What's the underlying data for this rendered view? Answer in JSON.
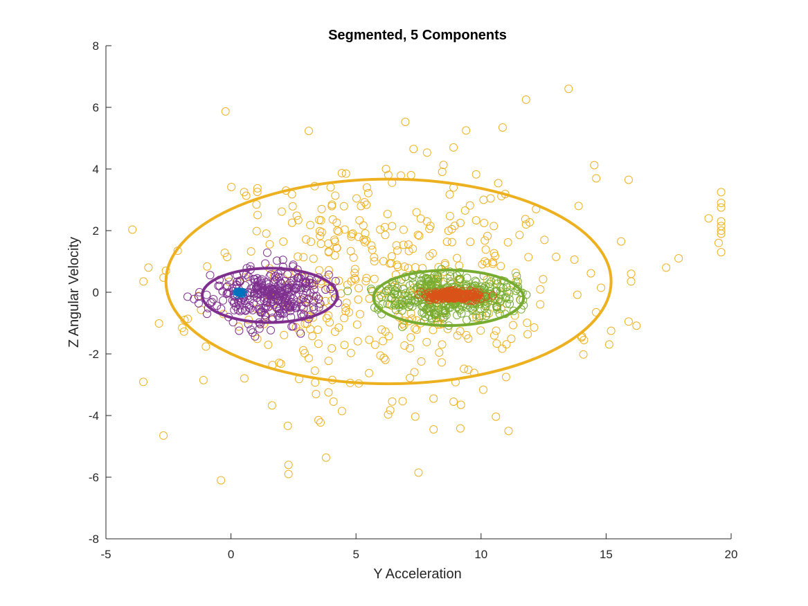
{
  "chart_data": {
    "type": "scatter",
    "title": "Segmented, 5 Components",
    "xlabel": "Y Acceleration",
    "ylabel": "Z Angular Velocity",
    "xlim": [
      -5,
      20
    ],
    "ylim": [
      -8,
      8
    ],
    "xticks": [
      "-5",
      "0",
      "5",
      "10",
      "15",
      "20"
    ],
    "yticks": [
      "-8",
      "-6",
      "-4",
      "-2",
      "0",
      "2",
      "4",
      "6",
      "8"
    ],
    "grid": false,
    "legend": false,
    "colors": {
      "yellow": "#EDB120",
      "purple": "#7E2F8E",
      "green": "#77AC30",
      "orange": "#D95319",
      "blue": "#0072BD"
    },
    "clusters": [
      {
        "color": "#EDB120",
        "center": [
          6.2,
          0.35
        ],
        "spread": [
          3.6,
          1.9
        ],
        "count": 420,
        "seed": 11
      },
      {
        "color": "#7E2F8E",
        "center": [
          1.5,
          -0.1
        ],
        "spread": [
          1.1,
          0.45
        ],
        "count": 320,
        "seed": 23
      },
      {
        "color": "#77AC30",
        "center": [
          8.7,
          -0.1
        ],
        "spread": [
          1.3,
          0.35
        ],
        "count": 380,
        "seed": 37
      },
      {
        "color": "#D95319",
        "center": [
          8.9,
          -0.1
        ],
        "spread": [
          0.6,
          0.07
        ],
        "count": 160,
        "seed": 41
      },
      {
        "color": "#0072BD",
        "center": [
          0.35,
          0.0
        ],
        "spread": [
          0.08,
          0.03
        ],
        "count": 12,
        "seed": 53
      }
    ],
    "outliers": [
      {
        "x": 13.5,
        "y": 6.6
      },
      {
        "x": 11.8,
        "y": 6.25
      },
      {
        "x": 9.4,
        "y": 5.25
      },
      {
        "x": 8.9,
        "y": 4.7
      },
      {
        "x": 7.3,
        "y": 4.65
      },
      {
        "x": 15.9,
        "y": 3.65
      },
      {
        "x": 19.6,
        "y": 3.25
      },
      {
        "x": 19.6,
        "y": 2.9
      },
      {
        "x": 19.6,
        "y": 2.75
      },
      {
        "x": 19.6,
        "y": 2.3
      },
      {
        "x": 19.6,
        "y": 2.15
      },
      {
        "x": 19.6,
        "y": 2.0
      },
      {
        "x": 19.6,
        "y": 1.9
      },
      {
        "x": 19.6,
        "y": 1.3
      },
      {
        "x": 19.5,
        "y": 1.6
      },
      {
        "x": 19.1,
        "y": 2.4
      },
      {
        "x": 17.9,
        "y": 1.1
      },
      {
        "x": 17.4,
        "y": 0.8
      },
      {
        "x": 16.0,
        "y": 0.6
      },
      {
        "x": 16.0,
        "y": 0.35
      },
      {
        "x": 15.6,
        "y": 1.65
      },
      {
        "x": 15.9,
        "y": -0.95
      },
      {
        "x": 15.2,
        "y": -1.25
      },
      {
        "x": 14.6,
        "y": -0.65
      },
      {
        "x": 13.9,
        "y": 2.8
      },
      {
        "x": 12.2,
        "y": 2.7
      },
      {
        "x": 11.8,
        "y": 2.2
      },
      {
        "x": 11.1,
        "y": -4.5
      },
      {
        "x": 11.0,
        "y": -2.75
      },
      {
        "x": 8.1,
        "y": -3.45
      },
      {
        "x": 8.9,
        "y": -3.55
      },
      {
        "x": 8.1,
        "y": -4.45
      },
      {
        "x": 7.5,
        "y": -5.85
      },
      {
        "x": 2.3,
        "y": -5.6
      },
      {
        "x": 2.3,
        "y": -5.9
      },
      {
        "x": -0.4,
        "y": -6.1
      },
      {
        "x": -2.7,
        "y": -4.65
      },
      {
        "x": 3.5,
        "y": -4.15
      },
      {
        "x": 3.4,
        "y": -3.3
      },
      {
        "x": 3.9,
        "y": -3.25
      },
      {
        "x": -1.1,
        "y": -2.85
      },
      {
        "x": -3.5,
        "y": 0.35
      },
      {
        "x": -3.3,
        "y": 0.8
      },
      {
        "x": -2.6,
        "y": 0.7
      },
      {
        "x": 2.2,
        "y": 3.3
      },
      {
        "x": 4.6,
        "y": 3.85
      },
      {
        "x": 6.2,
        "y": 4.0
      },
      {
        "x": 7.2,
        "y": 3.8
      },
      {
        "x": 8.9,
        "y": 3.4
      },
      {
        "x": 10.1,
        "y": 3.0
      },
      {
        "x": 13.0,
        "y": 1.15
      }
    ],
    "ellipses": [
      {
        "color": "#EDB120",
        "center": [
          6.3,
          0.35
        ],
        "rx": 8.9,
        "ry": 3.32,
        "rotation_deg": 0
      },
      {
        "color": "#7E2F8E",
        "center": [
          1.55,
          -0.1
        ],
        "rx": 2.7,
        "ry": 0.88,
        "rotation_deg": 0
      },
      {
        "color": "#77AC30",
        "center": [
          8.7,
          -0.18
        ],
        "rx": 3.0,
        "ry": 0.9,
        "rotation_deg": 0
      },
      {
        "color": "#D95319",
        "center": [
          8.95,
          -0.12
        ],
        "rx": 1.0,
        "ry": 0.1,
        "rotation_deg": 0
      },
      {
        "color": "#0072BD",
        "center": [
          0.35,
          0.0
        ],
        "rx": 0.18,
        "ry": 0.05,
        "rotation_deg": 0
      }
    ]
  }
}
